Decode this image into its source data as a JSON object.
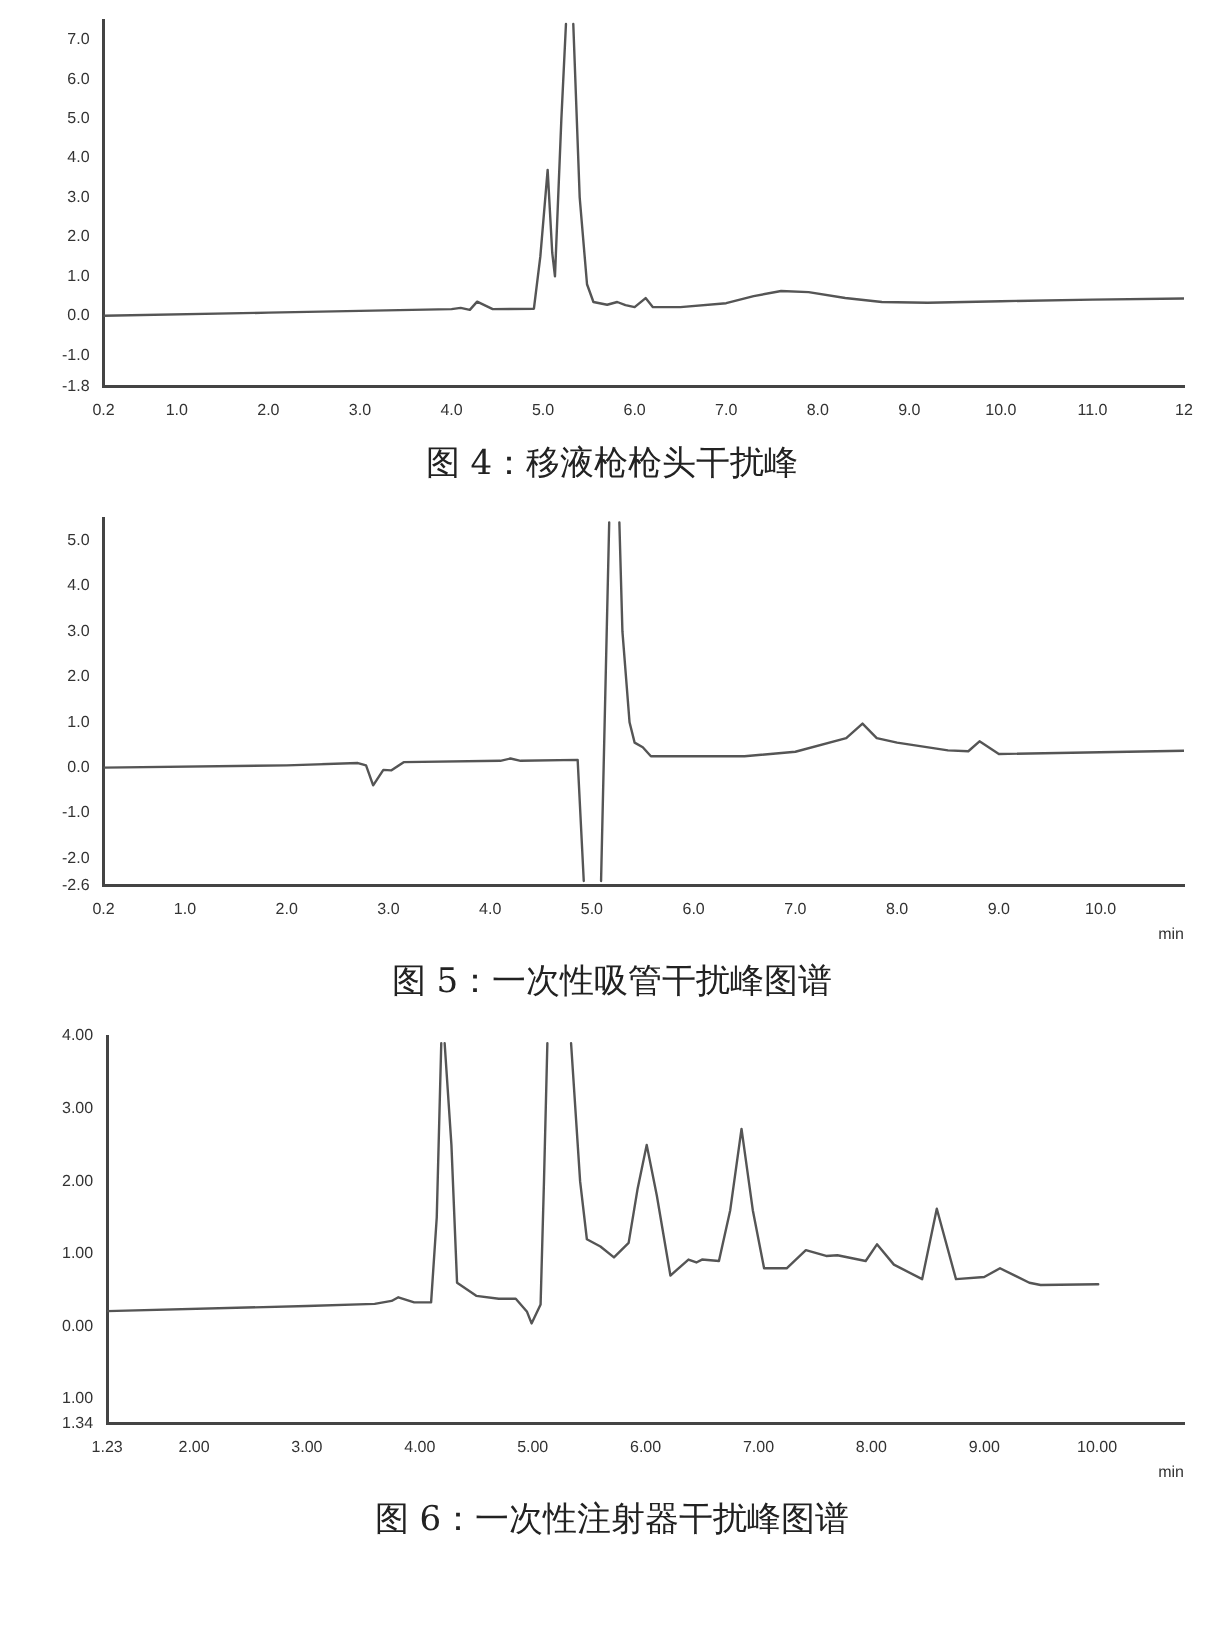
{
  "chart_data": [
    {
      "type": "line",
      "title": "图 4：移液枪枪头干扰峰",
      "marker": "none",
      "grid": false,
      "legend": false,
      "line_style": "solid",
      "xlim": [
        0.2,
        12
      ],
      "ylim": [
        -1.8,
        7.5
      ],
      "xticks": [
        {
          "value": 0.2,
          "label": "0.2"
        },
        {
          "value": 1,
          "label": "1.0"
        },
        {
          "value": 2,
          "label": "2.0"
        },
        {
          "value": 3,
          "label": "3.0"
        },
        {
          "value": 4,
          "label": "4.0"
        },
        {
          "value": 5,
          "label": "5.0"
        },
        {
          "value": 6,
          "label": "6.0"
        },
        {
          "value": 7,
          "label": "7.0"
        },
        {
          "value": 8,
          "label": "8.0"
        },
        {
          "value": 9,
          "label": "9.0"
        },
        {
          "value": 10,
          "label": "10.0"
        },
        {
          "value": 11,
          "label": "11.0"
        },
        {
          "value": 12,
          "label": "12"
        }
      ],
      "yticks": [
        {
          "value": -1.8,
          "label": "-1.8"
        },
        {
          "value": -1,
          "label": "-1.0"
        },
        {
          "value": 0,
          "label": "0.0"
        },
        {
          "value": 1,
          "label": "1.0"
        },
        {
          "value": 2,
          "label": "2.0"
        },
        {
          "value": 3,
          "label": "3.0"
        },
        {
          "value": 4,
          "label": "4.0"
        },
        {
          "value": 5,
          "label": "5.0"
        },
        {
          "value": 6,
          "label": "6.0"
        },
        {
          "value": 7,
          "label": "7.0"
        }
      ],
      "series": [
        {
          "color": "#555555",
          "x": [
            0.2,
            2,
            4,
            4.1,
            4.2,
            4.28,
            4.45,
            4.9,
            4.97,
            5.05,
            5.1,
            5.13,
            5.2,
            5.25,
            5.29,
            5.33,
            5.4,
            5.48,
            5.55,
            5.7,
            5.81,
            5.9,
            6.0,
            6.12,
            6.2,
            6.5,
            7.0,
            7.3,
            7.6,
            7.9,
            8.3,
            8.7,
            9.2,
            10,
            11,
            12
          ],
          "values": [
            0,
            0.08,
            0.17,
            0.2,
            0.15,
            0.36,
            0.17,
            0.18,
            1.5,
            3.7,
            1.6,
            1.0,
            5,
            7.4,
            null,
            7.4,
            3,
            0.8,
            0.35,
            0.28,
            0.35,
            0.27,
            0.22,
            0.45,
            0.22,
            0.22,
            0.32,
            0.5,
            0.63,
            0.6,
            0.45,
            0.35,
            0.33,
            0.37,
            0.41,
            0.44
          ]
        }
      ]
    },
    {
      "type": "line",
      "title": "图 5：一次性吸管干扰峰图谱",
      "xlabel": "min",
      "marker": "none",
      "grid": false,
      "legend": false,
      "line_style": "solid",
      "xlim": [
        0.2,
        10.82
      ],
      "ylim": [
        -2.6,
        5.5
      ],
      "xticks": [
        {
          "value": 0.2,
          "label": "0.2"
        },
        {
          "value": 1,
          "label": "1.0"
        },
        {
          "value": 2,
          "label": "2.0"
        },
        {
          "value": 3,
          "label": "3.0"
        },
        {
          "value": 4,
          "label": "4.0"
        },
        {
          "value": 5,
          "label": "5.0"
        },
        {
          "value": 6,
          "label": "6.0"
        },
        {
          "value": 7,
          "label": "7.0"
        },
        {
          "value": 8,
          "label": "8.0"
        },
        {
          "value": 9,
          "label": "9.0"
        },
        {
          "value": 10,
          "label": "10.0"
        }
      ],
      "yticks": [
        {
          "value": -2.6,
          "label": "-2.6"
        },
        {
          "value": -2,
          "label": "-2.0"
        },
        {
          "value": -1,
          "label": "-1.0"
        },
        {
          "value": 0,
          "label": "0.0"
        },
        {
          "value": 1,
          "label": "1.0"
        },
        {
          "value": 2,
          "label": "2.0"
        },
        {
          "value": 3,
          "label": "3.0"
        },
        {
          "value": 4,
          "label": "4.0"
        },
        {
          "value": 5,
          "label": "5.0"
        }
      ],
      "series": [
        {
          "color": "#555555",
          "x": [
            0.2,
            2,
            2.7,
            2.78,
            2.85,
            2.95,
            3.03,
            3.15,
            4.1,
            4.2,
            4.3,
            4.86,
            4.92,
            5.0,
            5.09,
            5.17,
            5.22,
            5.27,
            5.3,
            5.37,
            5.42,
            5.5,
            5.58,
            6.5,
            7.0,
            7.5,
            7.66,
            7.8,
            8.0,
            8.5,
            8.7,
            8.81,
            9.0,
            10.82
          ],
          "values": [
            0,
            0.05,
            0.1,
            0.05,
            -0.39,
            -0.05,
            -0.06,
            0.12,
            0.15,
            0.2,
            0.15,
            0.17,
            -2.5,
            null,
            -2.5,
            5.4,
            null,
            5.4,
            3,
            1,
            0.55,
            0.45,
            0.25,
            0.25,
            0.35,
            0.65,
            0.97,
            0.65,
            0.55,
            0.38,
            0.36,
            0.58,
            0.3,
            0.37
          ]
        }
      ]
    },
    {
      "type": "line",
      "title": "图 6：一次性注射器干扰峰图谱",
      "xlabel": "min",
      "marker": "none",
      "grid": false,
      "legend": false,
      "line_style": "solid",
      "xlim": [
        1.23,
        10.77
      ],
      "ylim": [
        -1.34,
        4
      ],
      "xticks": [
        {
          "value": 1.23,
          "label": "1.23"
        },
        {
          "value": 2,
          "label": "2.00"
        },
        {
          "value": 3,
          "label": "3.00"
        },
        {
          "value": 4,
          "label": "4.00"
        },
        {
          "value": 5,
          "label": "5.00"
        },
        {
          "value": 6,
          "label": "6.00"
        },
        {
          "value": 7,
          "label": "7.00"
        },
        {
          "value": 8,
          "label": "8.00"
        },
        {
          "value": 9,
          "label": "9.00"
        },
        {
          "value": 10,
          "label": "10.00"
        }
      ],
      "yticks": [
        {
          "value": -1.34,
          "label": "1.34"
        },
        {
          "value": -1,
          "label": "1.00"
        },
        {
          "value": 0,
          "label": "0.00"
        },
        {
          "value": 1,
          "label": "1.00"
        },
        {
          "value": 2,
          "label": "2.00"
        },
        {
          "value": 3,
          "label": "3.00"
        },
        {
          "value": 4,
          "label": "4.00"
        }
      ],
      "series": [
        {
          "color": "#555555",
          "x": [
            1.23,
            3,
            3.6,
            3.75,
            3.81,
            3.95,
            4.1,
            4.15,
            4.19,
            4.205,
            4.22,
            4.28,
            4.33,
            4.5,
            4.7,
            4.85,
            4.95,
            4.99,
            5.07,
            5.1,
            5.13,
            5.24,
            5.34,
            5.42,
            5.48,
            5.6,
            5.72,
            5.85,
            5.93,
            6.01,
            6.1,
            6.22,
            6.38,
            6.45,
            6.5,
            6.65,
            6.75,
            6.85,
            6.95,
            7.05,
            7.25,
            7.42,
            7.6,
            7.7,
            7.95,
            8.05,
            8.2,
            8.45,
            8.58,
            8.75,
            9.0,
            9.14,
            9.4,
            9.5,
            10.01
          ],
          "values": [
            0.21,
            0.28,
            0.31,
            0.35,
            0.4,
            0.33,
            0.33,
            1.5,
            3.9,
            null,
            3.9,
            2.5,
            0.6,
            0.42,
            0.38,
            0.38,
            0.2,
            0.04,
            0.3,
            2,
            3.9,
            null,
            3.9,
            2,
            1.2,
            1.1,
            0.95,
            1.15,
            1.9,
            2.5,
            1.8,
            0.7,
            0.92,
            0.88,
            0.92,
            0.9,
            1.6,
            2.72,
            1.6,
            0.8,
            0.8,
            1.05,
            0.97,
            0.98,
            0.9,
            1.13,
            0.85,
            0.65,
            1.62,
            0.65,
            0.68,
            0.8,
            0.6,
            0.57,
            0.58
          ]
        }
      ]
    }
  ]
}
